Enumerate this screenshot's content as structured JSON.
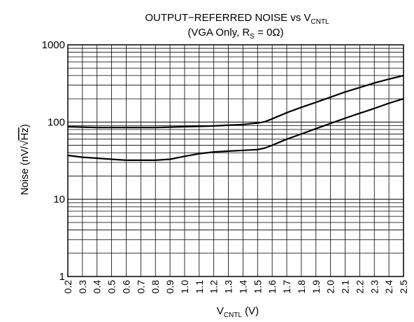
{
  "chart_data": {
    "type": "line",
    "title": {
      "line1_main": "OUTPUT−REFERRED NOISE vs V",
      "line1_sub": "CNTL",
      "line2_start": "(VGA Only, R",
      "line2_sub": "S",
      "line2_end": " = 0Ω)"
    },
    "xlabel": {
      "main": "V",
      "sub": "CNTL",
      "unit": " (V)"
    },
    "ylabel": {
      "prefix": "Noise (nV/",
      "radical": "√",
      "radicand": "Hz",
      "suffix": ")"
    },
    "xlim": [
      0.2,
      2.5
    ],
    "ylim": [
      1,
      1000
    ],
    "yscale": "log",
    "grid": true,
    "x_ticks": [
      "0.2",
      "0.3",
      "0.4",
      "0.5",
      "0.6",
      "0.7",
      "0.8",
      "0.9",
      "1.0",
      "1.1",
      "1.2",
      "1.3",
      "1.4",
      "1.5",
      "1.6",
      "1.7",
      "1.8",
      "1.9",
      "2.0",
      "2.1",
      "2.2",
      "2.3",
      "2.4",
      "2.5"
    ],
    "y_ticks": [
      "1",
      "10",
      "100",
      "1000"
    ],
    "x": [
      0.2,
      0.3,
      0.4,
      0.5,
      0.6,
      0.7,
      0.8,
      0.9,
      1.0,
      1.1,
      1.2,
      1.3,
      1.4,
      1.5,
      1.55,
      1.6,
      1.7,
      1.8,
      1.9,
      2.0,
      2.1,
      2.2,
      2.3,
      2.4,
      2.5
    ],
    "series": [
      {
        "values": [
          87,
          86,
          85,
          85,
          85,
          85,
          85,
          86,
          87,
          88,
          89,
          91,
          93,
          97,
          101,
          110,
          132,
          155,
          180,
          210,
          245,
          280,
          320,
          360,
          400
        ]
      },
      {
        "values": [
          37,
          35,
          34,
          33,
          32,
          32,
          32,
          33,
          36,
          39,
          41,
          42,
          43,
          44,
          46,
          50,
          60,
          70,
          82,
          96,
          112,
          130,
          150,
          175,
          200
        ]
      }
    ]
  }
}
